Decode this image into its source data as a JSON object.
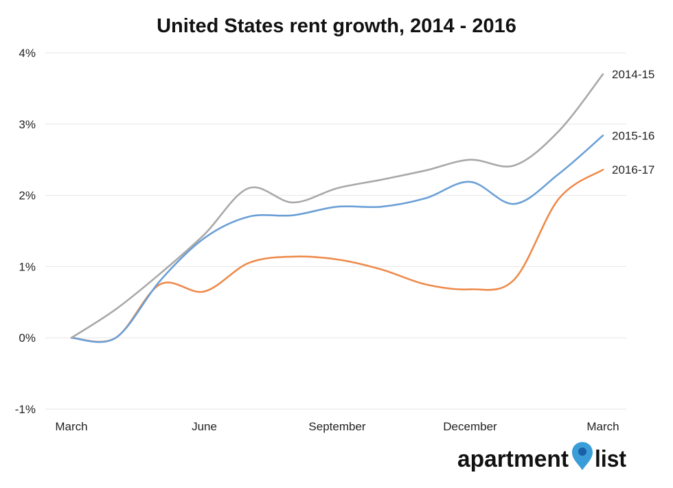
{
  "chart_data": {
    "type": "line",
    "title": "United States rent growth, 2014 - 2016",
    "x_tick_labels": [
      "March",
      "June",
      "September",
      "December",
      "March"
    ],
    "x_tick_index": [
      0,
      3,
      6,
      9,
      12
    ],
    "num_points": 13,
    "ylim": [
      -1,
      4
    ],
    "y_ticks": [
      -1,
      0,
      1,
      2,
      3,
      4
    ],
    "y_tick_labels": [
      "-1%",
      "0%",
      "1%",
      "2%",
      "3%",
      "4%"
    ],
    "grid": true,
    "series": [
      {
        "name": "2014-15",
        "color": "#a8a8a8",
        "values": [
          0.0,
          0.4,
          0.9,
          1.45,
          2.1,
          1.9,
          2.1,
          2.22,
          2.35,
          2.5,
          2.42,
          2.9,
          3.7
        ]
      },
      {
        "name": "2015-16",
        "color": "#6a9fd6",
        "values": [
          0.0,
          0.0,
          0.8,
          1.4,
          1.7,
          1.72,
          1.84,
          1.84,
          1.96,
          2.19,
          1.88,
          2.3,
          2.84
        ]
      },
      {
        "name": "2016-17",
        "color": "#ee8a4a",
        "values": [
          0.0,
          0.0,
          0.75,
          0.65,
          1.05,
          1.14,
          1.1,
          0.96,
          0.75,
          0.68,
          0.82,
          1.95,
          2.36
        ]
      }
    ]
  },
  "logo": {
    "text_left": "apartment",
    "text_right": "list",
    "pin_color": "#3a9dd8",
    "pin_dark_color": "#1b5fa8"
  }
}
